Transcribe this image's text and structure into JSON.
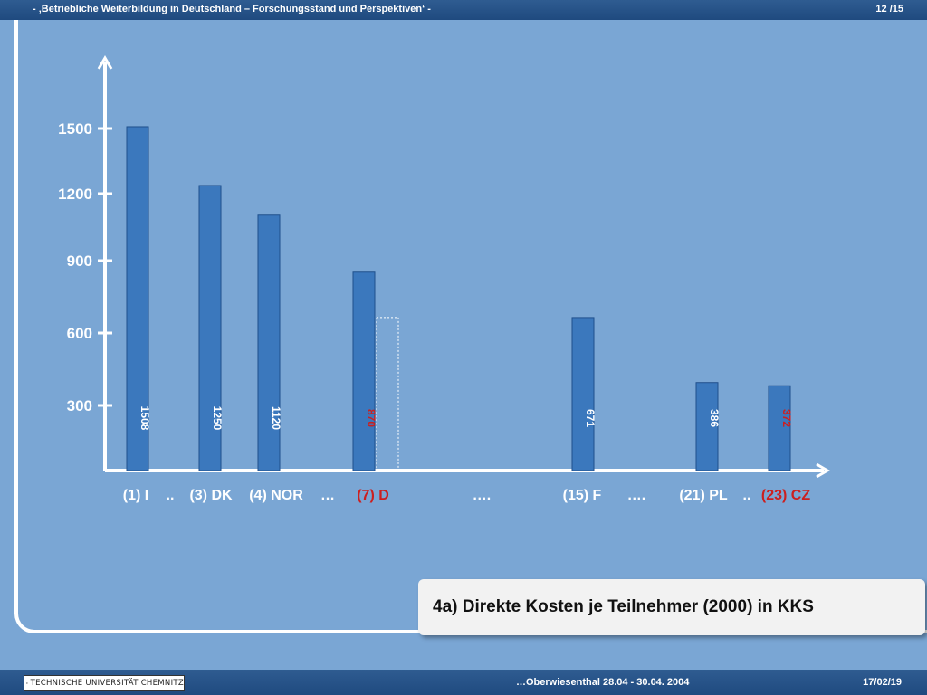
{
  "header": {
    "title": "- ‚Betriebliche Weiterbildung in Deutschland – Forschungsstand und Perspektiven‘ -",
    "page": "12 /15"
  },
  "footer": {
    "logo_text": "TECHNISCHE UNIVERSITÄT CHEMNITZ",
    "event": "…Oberwiesenthal 28.04 - 30.04. 2004",
    "date": "17/02/19"
  },
  "callout": {
    "text": "4a) Direkte Kosten je Teilnehmer (2000) in KKS"
  },
  "colors": {
    "background": "#7aa6d4",
    "bar": "#3b78bd",
    "highlight": "#cc1f1f",
    "bar_label": "#ffffff"
  },
  "chart_data": {
    "type": "bar",
    "yticks": [
      300,
      600,
      900,
      1200,
      1500
    ],
    "ylim": [
      0,
      1800
    ],
    "xlabel": "",
    "ylabel": "",
    "bars": [
      {
        "category": "(1) I",
        "value": 1508,
        "label": "1508",
        "highlight": false
      },
      {
        "category": "(3) DK",
        "value": 1250,
        "label": "1250",
        "highlight": false
      },
      {
        "category": "(4) NOR",
        "value": 1120,
        "label": "1120",
        "highlight": false
      },
      {
        "category": "(7) D",
        "value": 870,
        "label": "870",
        "highlight": true
      },
      {
        "category": "(15) F",
        "value": 671,
        "label": "671",
        "highlight": false
      },
      {
        "category": "(21) PL",
        "value": 386,
        "label": "386",
        "highlight": false
      },
      {
        "category": "(23) CZ",
        "value": 372,
        "label": "372",
        "highlight": true
      }
    ],
    "reference_box": {
      "after": "(7) D",
      "value": 671
    },
    "separators": [
      {
        "text": "..",
        "after": "(1) I"
      },
      {
        "text": "…",
        "after": "(4) NOR"
      },
      {
        "text": "….",
        "after": "(7) D"
      },
      {
        "text": "….",
        "after": "(15) F"
      },
      {
        "text": "..",
        "after": "(21) PL"
      }
    ]
  }
}
